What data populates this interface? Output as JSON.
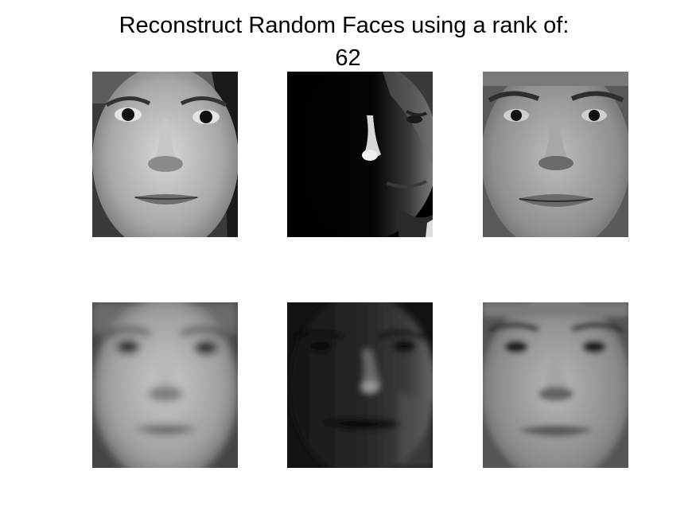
{
  "figure": {
    "title_line_1": "Reconstruct Random Faces using a rank of:",
    "title_line_2": "62"
  },
  "faces": {
    "original": [
      {
        "subject": "woman, frontal lighting"
      },
      {
        "subject": "man, strong side lighting from the right"
      },
      {
        "subject": "young man, frontal lighting"
      }
    ],
    "reconstructed": [
      {
        "subject": "woman, blurred low-rank reconstruction"
      },
      {
        "subject": "man, low-rank reconstruction with light filled in"
      },
      {
        "subject": "young man, blurred low-rank reconstruction"
      }
    ]
  },
  "colors": {
    "background": "#ffffff",
    "title_text": "#000000"
  }
}
